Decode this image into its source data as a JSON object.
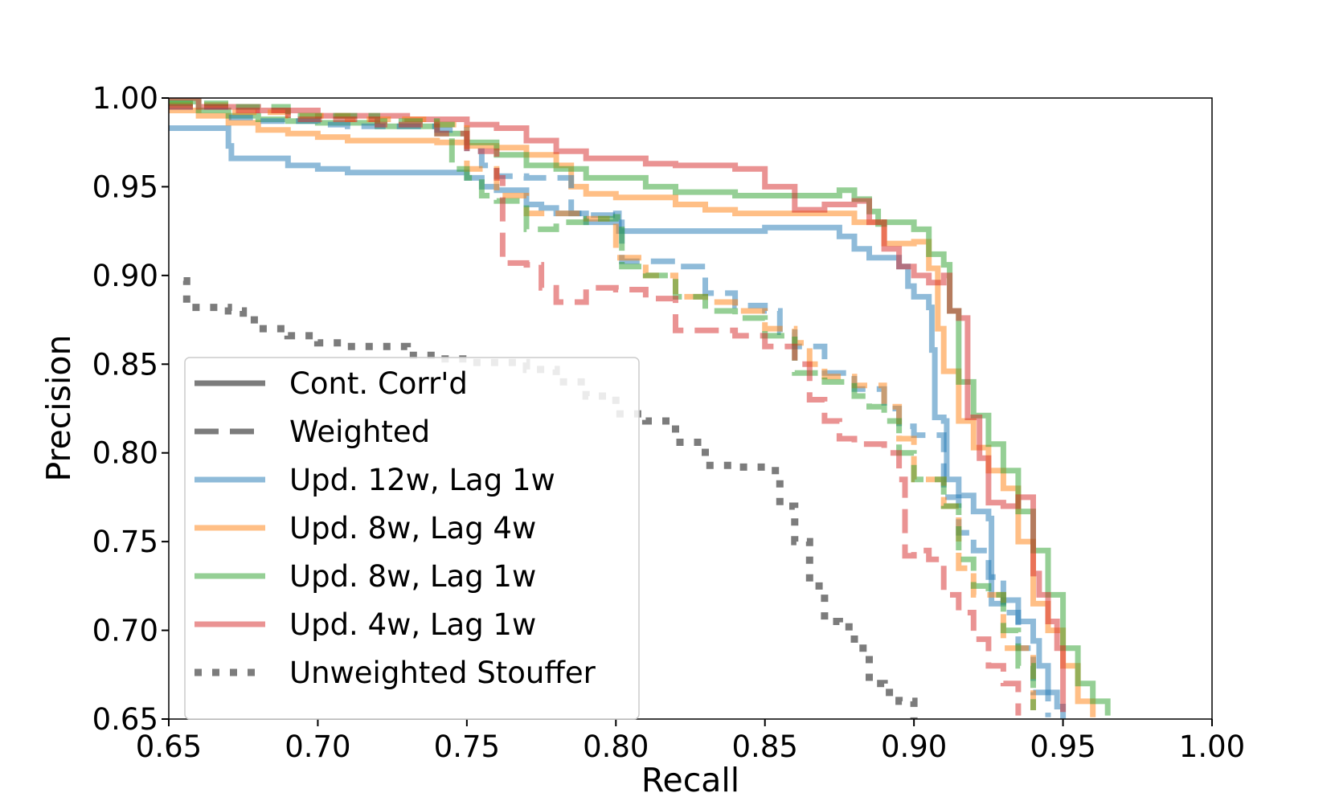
{
  "chart_data": {
    "type": "line",
    "title": "",
    "xlabel": "Recall",
    "ylabel": "Precision",
    "xlim": [
      0.65,
      1.0
    ],
    "ylim": [
      0.65,
      1.0
    ],
    "xticks": [
      0.65,
      0.7,
      0.75,
      0.8,
      0.85,
      0.9,
      0.95,
      1.0
    ],
    "yticks": [
      0.65,
      0.7,
      0.75,
      0.8,
      0.85,
      0.9,
      0.95,
      1.0
    ],
    "tick_labels": [
      "0.65",
      "0.70",
      "0.75",
      "0.80",
      "0.85",
      "0.90",
      "0.95",
      "1.00"
    ],
    "grid": false,
    "legend_position": "lower-left",
    "legend": [
      {
        "label": "Cont. Corr'd",
        "style": "solid",
        "color": "#6e6e6e"
      },
      {
        "label": "Weighted",
        "style": "dashed",
        "color": "#6e6e6e"
      },
      {
        "label": "Upd. 12w, Lag 1w",
        "style": "solid",
        "color": "#1f77b4"
      },
      {
        "label": "Upd. 8w, Lag 4w",
        "style": "solid",
        "color": "#ff7f0e"
      },
      {
        "label": "Upd. 8w, Lag 1w",
        "style": "solid",
        "color": "#2ca02c"
      },
      {
        "label": "Upd. 4w, Lag 1w",
        "style": "solid",
        "color": "#d62728"
      },
      {
        "label": "Unweighted Stouffer",
        "style": "dotted",
        "color": "#6e6e6e"
      }
    ],
    "series": [
      {
        "name": "Upd. 12w, Lag 1w — Cont. Corr'd",
        "color": "#1f77b4",
        "style": "solid",
        "x": [
          0.65,
          0.67,
          0.671,
          0.68,
          0.69,
          0.7,
          0.71,
          0.73,
          0.745,
          0.75,
          0.755,
          0.76,
          0.77,
          0.775,
          0.78,
          0.79,
          0.8,
          0.801,
          0.81,
          0.82,
          0.84,
          0.85,
          0.87,
          0.875,
          0.88,
          0.885,
          0.89,
          0.895,
          0.898,
          0.9,
          0.905,
          0.906,
          0.907,
          0.91,
          0.911,
          0.915,
          0.92,
          0.925,
          0.926,
          0.93,
          0.935,
          0.94,
          0.942,
          0.945,
          0.948,
          0.95
        ],
        "y": [
          0.983,
          0.973,
          0.966,
          0.966,
          0.962,
          0.96,
          0.958,
          0.958,
          0.958,
          0.955,
          0.95,
          0.948,
          0.94,
          0.938,
          0.935,
          0.93,
          0.935,
          0.925,
          0.925,
          0.925,
          0.925,
          0.927,
          0.927,
          0.922,
          0.915,
          0.91,
          0.91,
          0.905,
          0.894,
          0.888,
          0.882,
          0.858,
          0.82,
          0.818,
          0.785,
          0.776,
          0.767,
          0.763,
          0.715,
          0.717,
          0.705,
          0.694,
          0.68,
          0.665,
          0.657,
          0.65
        ]
      },
      {
        "name": "Upd. 8w, Lag 4w — Cont. Corr'd",
        "color": "#ff7f0e",
        "style": "solid",
        "x": [
          0.65,
          0.66,
          0.67,
          0.68,
          0.69,
          0.7,
          0.71,
          0.73,
          0.74,
          0.75,
          0.76,
          0.77,
          0.78,
          0.785,
          0.79,
          0.8,
          0.82,
          0.83,
          0.84,
          0.85,
          0.87,
          0.88,
          0.89,
          0.895,
          0.9,
          0.905,
          0.908,
          0.91,
          0.915,
          0.92,
          0.925,
          0.93,
          0.935,
          0.94,
          0.945,
          0.95,
          0.955,
          0.96
        ],
        "y": [
          0.993,
          0.99,
          0.986,
          0.982,
          0.98,
          0.978,
          0.976,
          0.976,
          0.975,
          0.973,
          0.972,
          0.968,
          0.962,
          0.95,
          0.946,
          0.944,
          0.94,
          0.937,
          0.935,
          0.935,
          0.935,
          0.93,
          0.918,
          0.918,
          0.919,
          0.904,
          0.87,
          0.846,
          0.818,
          0.803,
          0.79,
          0.78,
          0.75,
          0.715,
          0.7,
          0.68,
          0.66,
          0.651
        ]
      },
      {
        "name": "Upd. 8w, Lag 1w — Cont. Corr'd",
        "color": "#2ca02c",
        "style": "solid",
        "x": [
          0.65,
          0.66,
          0.67,
          0.68,
          0.69,
          0.7,
          0.72,
          0.74,
          0.75,
          0.76,
          0.77,
          0.78,
          0.79,
          0.8,
          0.81,
          0.82,
          0.84,
          0.86,
          0.87,
          0.875,
          0.88,
          0.885,
          0.888,
          0.89,
          0.9,
          0.905,
          0.91,
          0.912,
          0.915,
          0.92,
          0.925,
          0.93,
          0.935,
          0.94,
          0.945,
          0.95,
          0.955,
          0.96,
          0.965
        ],
        "y": [
          0.998,
          0.993,
          0.99,
          0.988,
          0.987,
          0.986,
          0.984,
          0.98,
          0.975,
          0.968,
          0.962,
          0.96,
          0.955,
          0.955,
          0.95,
          0.947,
          0.945,
          0.945,
          0.945,
          0.948,
          0.943,
          0.936,
          0.929,
          0.93,
          0.926,
          0.912,
          0.906,
          0.88,
          0.84,
          0.821,
          0.805,
          0.79,
          0.767,
          0.745,
          0.72,
          0.69,
          0.67,
          0.66,
          0.652
        ]
      },
      {
        "name": "Upd. 4w, Lag 1w — Cont. Corr'd",
        "color": "#d62728",
        "style": "solid",
        "x": [
          0.65,
          0.66,
          0.68,
          0.7,
          0.72,
          0.73,
          0.75,
          0.76,
          0.77,
          0.78,
          0.79,
          0.8,
          0.81,
          0.82,
          0.83,
          0.84,
          0.85,
          0.86,
          0.87,
          0.88,
          0.885,
          0.89,
          0.895,
          0.9,
          0.905,
          0.91,
          0.912,
          0.915,
          0.918,
          0.92,
          0.922,
          0.925,
          0.93,
          0.935,
          0.94,
          0.942,
          0.945,
          0.948,
          0.95
        ],
        "y": [
          1.0,
          0.995,
          0.993,
          0.99,
          0.99,
          0.988,
          0.985,
          0.983,
          0.976,
          0.97,
          0.966,
          0.966,
          0.963,
          0.962,
          0.962,
          0.96,
          0.95,
          0.937,
          0.94,
          0.942,
          0.93,
          0.915,
          0.905,
          0.9,
          0.896,
          0.9,
          0.88,
          0.876,
          0.82,
          0.82,
          0.797,
          0.772,
          0.77,
          0.775,
          0.732,
          0.72,
          0.705,
          0.69,
          0.654
        ]
      },
      {
        "name": "Upd. 12w, Lag 1w — Weighted",
        "color": "#1f77b4",
        "style": "dashed",
        "x": [
          0.65,
          0.67,
          0.68,
          0.69,
          0.7,
          0.71,
          0.74,
          0.75,
          0.755,
          0.76,
          0.77,
          0.78,
          0.785,
          0.79,
          0.8,
          0.802,
          0.81,
          0.82,
          0.83,
          0.84,
          0.85,
          0.855,
          0.86,
          0.87,
          0.88,
          0.89,
          0.895,
          0.9,
          0.91,
          0.915,
          0.92,
          0.925,
          0.93,
          0.935,
          0.94,
          0.945
        ],
        "y": [
          0.995,
          0.989,
          0.987,
          0.987,
          0.985,
          0.984,
          0.982,
          0.97,
          0.962,
          0.956,
          0.955,
          0.955,
          0.935,
          0.934,
          0.934,
          0.908,
          0.908,
          0.905,
          0.89,
          0.883,
          0.88,
          0.868,
          0.86,
          0.845,
          0.836,
          0.825,
          0.815,
          0.81,
          0.775,
          0.755,
          0.745,
          0.73,
          0.71,
          0.69,
          0.665,
          0.651
        ]
      },
      {
        "name": "Upd. 8w, Lag 4w — Weighted",
        "color": "#ff7f0e",
        "style": "dashed",
        "x": [
          0.65,
          0.67,
          0.69,
          0.71,
          0.74,
          0.75,
          0.76,
          0.77,
          0.78,
          0.79,
          0.8,
          0.81,
          0.82,
          0.83,
          0.84,
          0.85,
          0.86,
          0.865,
          0.87,
          0.88,
          0.89,
          0.895,
          0.9,
          0.91,
          0.915,
          0.92,
          0.93,
          0.94
        ],
        "y": [
          0.996,
          0.992,
          0.99,
          0.988,
          0.985,
          0.96,
          0.945,
          0.935,
          0.935,
          0.932,
          0.91,
          0.9,
          0.888,
          0.885,
          0.88,
          0.87,
          0.862,
          0.85,
          0.843,
          0.838,
          0.826,
          0.808,
          0.785,
          0.77,
          0.735,
          0.72,
          0.69,
          0.655
        ]
      },
      {
        "name": "Upd. 8w, Lag 1w — Weighted",
        "color": "#2ca02c",
        "style": "dashed",
        "x": [
          0.65,
          0.67,
          0.69,
          0.72,
          0.74,
          0.745,
          0.75,
          0.755,
          0.76,
          0.77,
          0.78,
          0.79,
          0.8,
          0.802,
          0.81,
          0.82,
          0.83,
          0.84,
          0.85,
          0.86,
          0.87,
          0.88,
          0.885,
          0.89,
          0.895,
          0.9,
          0.905,
          0.91,
          0.915,
          0.92,
          0.925,
          0.93,
          0.935,
          0.94
        ],
        "y": [
          0.997,
          0.995,
          0.99,
          0.987,
          0.985,
          0.96,
          0.955,
          0.945,
          0.942,
          0.926,
          0.93,
          0.932,
          0.933,
          0.905,
          0.9,
          0.888,
          0.88,
          0.876,
          0.866,
          0.845,
          0.84,
          0.832,
          0.826,
          0.818,
          0.8,
          0.785,
          0.785,
          0.77,
          0.74,
          0.725,
          0.72,
          0.7,
          0.68,
          0.655
        ]
      },
      {
        "name": "Upd. 4w, Lag 1w — Weighted",
        "color": "#d62728",
        "style": "dashed",
        "x": [
          0.65,
          0.67,
          0.69,
          0.72,
          0.74,
          0.75,
          0.76,
          0.762,
          0.77,
          0.775,
          0.78,
          0.79,
          0.8,
          0.81,
          0.82,
          0.84,
          0.85,
          0.86,
          0.865,
          0.87,
          0.875,
          0.88,
          0.89,
          0.895,
          0.897,
          0.9,
          0.905,
          0.91,
          0.915,
          0.92,
          0.925,
          0.93,
          0.935
        ],
        "y": [
          0.995,
          0.993,
          0.988,
          0.985,
          0.98,
          0.97,
          0.955,
          0.907,
          0.906,
          0.893,
          0.885,
          0.893,
          0.892,
          0.887,
          0.869,
          0.866,
          0.86,
          0.85,
          0.83,
          0.818,
          0.808,
          0.805,
          0.8,
          0.785,
          0.742,
          0.745,
          0.74,
          0.72,
          0.71,
          0.695,
          0.68,
          0.67,
          0.652
        ]
      },
      {
        "name": "Unweighted Stouffer",
        "color": "#6e6e6e",
        "style": "dotted",
        "x": [
          0.655,
          0.656,
          0.67,
          0.675,
          0.68,
          0.69,
          0.7,
          0.71,
          0.72,
          0.73,
          0.74,
          0.75,
          0.76,
          0.77,
          0.78,
          0.79,
          0.8,
          0.81,
          0.82,
          0.83,
          0.84,
          0.85,
          0.855,
          0.86,
          0.865,
          0.87,
          0.875,
          0.88,
          0.885,
          0.89,
          0.895,
          0.9
        ],
        "y": [
          0.897,
          0.882,
          0.88,
          0.875,
          0.87,
          0.866,
          0.862,
          0.86,
          0.86,
          0.855,
          0.853,
          0.851,
          0.851,
          0.847,
          0.84,
          0.832,
          0.822,
          0.818,
          0.806,
          0.793,
          0.792,
          0.79,
          0.77,
          0.75,
          0.725,
          0.705,
          0.702,
          0.69,
          0.67,
          0.665,
          0.66,
          0.65
        ]
      }
    ]
  }
}
